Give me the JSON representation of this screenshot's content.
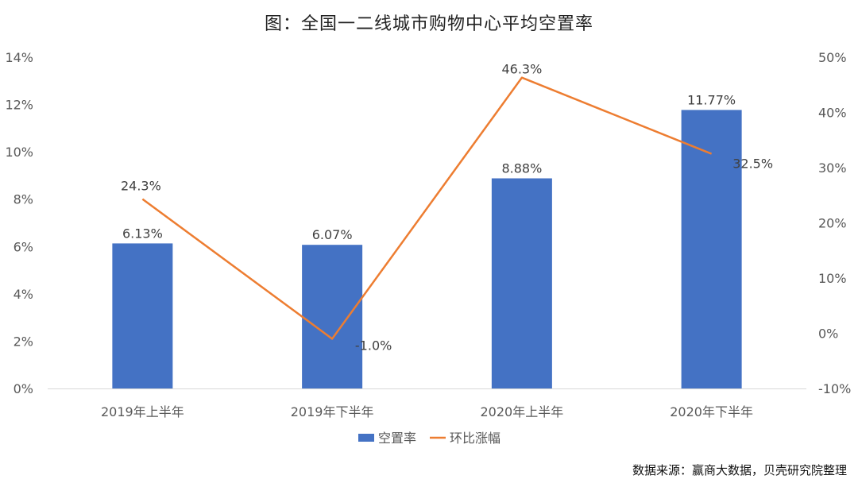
{
  "colors": {
    "bar": "#4472C4",
    "line": "#ED7D31",
    "axis": "#D9D9D9",
    "text": "#595959",
    "label": "#404040"
  },
  "chart_data": {
    "type": "bar",
    "title": "图：全国一二线城市购物中心平均空置率",
    "categories": [
      "2019年上半年",
      "2019年下半年",
      "2020年上半年",
      "2020年下半年"
    ],
    "series": [
      {
        "name": "空置率",
        "type": "bar",
        "axis": "left",
        "values": [
          6.13,
          6.07,
          8.88,
          11.77
        ],
        "labels": [
          "6.13%",
          "6.07%",
          "8.88%",
          "11.77%"
        ]
      },
      {
        "name": "环比涨幅",
        "type": "line",
        "axis": "right",
        "values": [
          24.3,
          -1.0,
          46.3,
          32.5
        ],
        "labels": [
          "24.3%",
          "-1.0%",
          "46.3%",
          "32.5%"
        ]
      }
    ],
    "y_left": {
      "lim": [
        0,
        14
      ],
      "ticks": [
        "0%",
        "2%",
        "4%",
        "6%",
        "8%",
        "10%",
        "12%",
        "14%"
      ]
    },
    "y_right": {
      "lim": [
        -10,
        50
      ],
      "ticks": [
        "-10%",
        "0%",
        "10%",
        "20%",
        "30%",
        "40%",
        "50%"
      ]
    },
    "grid": false,
    "legend": "bottom-center"
  },
  "source": "数据来源：赢商大数据，贝壳研究院整理"
}
